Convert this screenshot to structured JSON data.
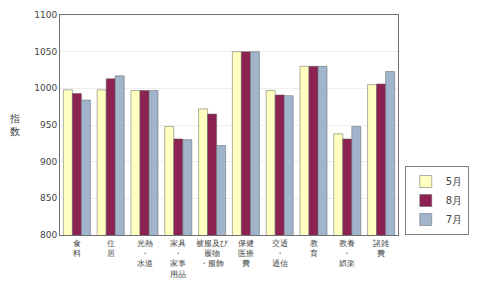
{
  "chart_data": {
    "type": "bar",
    "categories": [
      "食\n料",
      "住\n居",
      "光熱\n・\n水道",
      "家具\n・\n家事\n用品",
      "被服及び\n履物\n・服飾",
      "保健\n医療\n費",
      "交通\n・\n通信",
      "教\n育",
      "教養\n・\n娯楽",
      "諸雑\n費"
    ],
    "series": [
      {
        "name": "5月",
        "color": "#FFFFC0",
        "values": [
          998,
          998,
          997,
          948,
          972,
          1050,
          997,
          1030,
          938,
          1005
        ]
      },
      {
        "name": "8月",
        "color": "#8B2252",
        "values": [
          993,
          1013,
          997,
          931,
          965,
          1050,
          991,
          1030,
          931,
          1006
        ]
      },
      {
        "name": "7月",
        "color": "#A0B4CC",
        "values": [
          984,
          1017,
          997,
          930,
          922,
          1050,
          990,
          1030,
          948,
          1023
        ]
      }
    ],
    "ylabel": "指\n数",
    "ylim": [
      800,
      1100
    ],
    "yticks": [
      800,
      850,
      900,
      950,
      1000,
      1050,
      1100
    ],
    "grid": true,
    "legend": "lower right"
  }
}
